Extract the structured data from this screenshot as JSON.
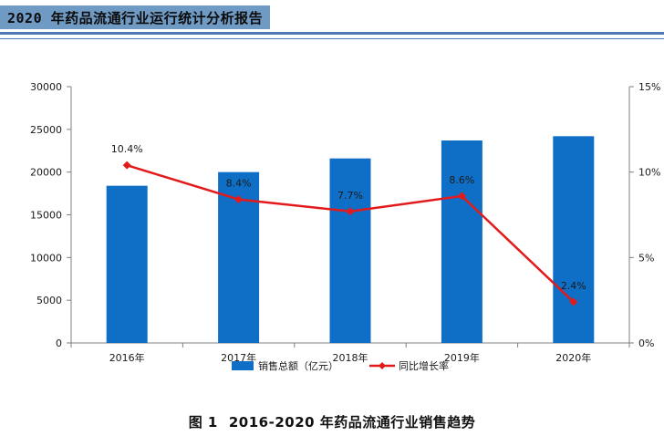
{
  "header": {
    "title": "2020 年药品流通行业运行统计分析报告"
  },
  "caption": {
    "label": "图 1",
    "text": "2016-2020 年药品流通行业销售趋势"
  },
  "chart_data": {
    "type": "bar",
    "categories": [
      "2016年",
      "2017年",
      "2018年",
      "2019年",
      "2020年"
    ],
    "series": [
      {
        "name": "销售总额（亿元）",
        "type": "bar",
        "axis": "left",
        "values": [
          18400,
          20000,
          21600,
          23700,
          24200
        ],
        "color": "#0f6fc6"
      },
      {
        "name": "同比增长率",
        "type": "line",
        "axis": "right",
        "values": [
          10.4,
          8.4,
          7.7,
          8.6,
          2.4
        ],
        "labels": [
          "10.4%",
          "8.4%",
          "7.7%",
          "8.6%",
          "2.4%"
        ],
        "color": "#e31a1c"
      }
    ],
    "y_left": {
      "min": 0,
      "max": 30000,
      "ticks": [
        "0",
        "5000",
        "10000",
        "15000",
        "20000",
        "25000",
        "30000"
      ]
    },
    "y_right": {
      "min": 0,
      "max": 15,
      "ticks": [
        "0%",
        "5%",
        "10%",
        "15%"
      ]
    },
    "grid": false,
    "legend_position": "bottom"
  }
}
